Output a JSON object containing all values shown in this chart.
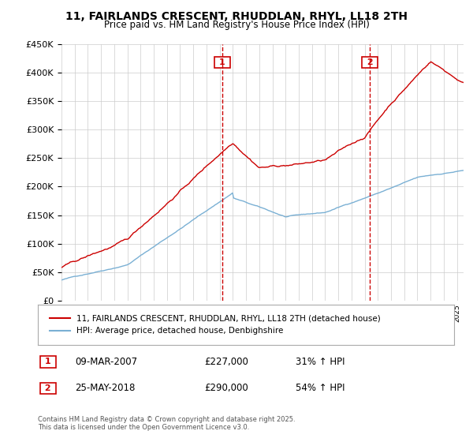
{
  "title": "11, FAIRLANDS CRESCENT, RHUDDLAN, RHYL, LL18 2TH",
  "subtitle": "Price paid vs. HM Land Registry's House Price Index (HPI)",
  "legend_line1": "11, FAIRLANDS CRESCENT, RHUDDLAN, RHYL, LL18 2TH (detached house)",
  "legend_line2": "HPI: Average price, detached house, Denbighshire",
  "annotation1_box": "1",
  "annotation1_date": "09-MAR-2007",
  "annotation1_price": "£227,000",
  "annotation1_hpi": "31% ↑ HPI",
  "annotation2_box": "2",
  "annotation2_date": "25-MAY-2018",
  "annotation2_price": "£290,000",
  "annotation2_hpi": "54% ↑ HPI",
  "footer": "Contains HM Land Registry data © Crown copyright and database right 2025.\nThis data is licensed under the Open Government Licence v3.0.",
  "sale1_year": 2007.19,
  "sale1_price": 227000,
  "sale2_year": 2018.4,
  "sale2_price": 290000,
  "red_color": "#cc0000",
  "blue_color": "#7ab0d4",
  "background_color": "#ffffff",
  "grid_color": "#cccccc",
  "ylim_min": 0,
  "ylim_max": 450000,
  "xlim_min": 1995,
  "xlim_max": 2025.5
}
